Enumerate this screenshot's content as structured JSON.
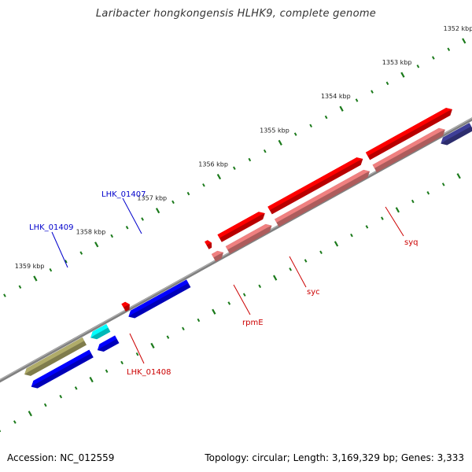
{
  "header": {
    "title": "Laribacter hongkongensis HLHK9, complete genome"
  },
  "footer": {
    "accession": "Accession: NC_012559",
    "summary": "Topology: circular; Length: 3,169,329 bp; Genes: 3,333"
  },
  "colors": {
    "tick": "#1b7a1b",
    "backbone": "#808080",
    "forward_cds": "#ff0000",
    "forward_rna": "#f08080",
    "reverse_cds": "#0000ff",
    "reverse_other": "#b0ac6a",
    "reverse_cyan": "#00ffff",
    "reverse_dark": "#3e3e98",
    "label_forward": "#cc0000",
    "label_reverse": "#0000cc"
  },
  "ruler": {
    "labels": [
      "1352 kbp",
      "1353 kbp",
      "1354 kbp",
      "1355 kbp",
      "1356 kbp",
      "1357 kbp",
      "1358 kbp",
      "1359 kbp"
    ]
  },
  "features": [
    {
      "id": "f-top-right",
      "track": "outer-forward",
      "start": 1352.62,
      "end": 1354.0,
      "color": "forward_cds"
    },
    {
      "id": "syc",
      "track": "outer-forward",
      "start": 1354.08,
      "end": 1355.6,
      "color": "forward_cds"
    },
    {
      "id": "f-mid",
      "track": "outer-forward",
      "start": 1355.68,
      "end": 1356.42,
      "color": "forward_cds"
    },
    {
      "id": "rpmE",
      "track": "outer-forward",
      "start": 1356.55,
      "end": 1356.63,
      "color": "forward_cds"
    },
    {
      "id": "rna-top-right",
      "track": "inner-forward",
      "start": 1352.85,
      "end": 1354.0,
      "color": "forward_rna"
    },
    {
      "id": "syq",
      "track": "inner-forward",
      "start": 1354.08,
      "end": 1355.6,
      "color": "forward_rna"
    },
    {
      "id": "rna-mid",
      "track": "inner-forward",
      "start": 1355.68,
      "end": 1356.4,
      "color": "forward_rna"
    },
    {
      "id": "rna-small",
      "track": "inner-forward",
      "start": 1356.47,
      "end": 1356.63,
      "color": "forward_rna"
    },
    {
      "id": "LHK_01408",
      "track": "inner-forward",
      "start": 1358.0,
      "end": 1358.1,
      "color": "forward_cds"
    },
    {
      "id": "r-dark",
      "track": "inner-reverse",
      "start": 1352.5,
      "end": 1353.0,
      "color": "reverse_dark"
    },
    {
      "id": "LHK_01407",
      "track": "inner-reverse",
      "start": 1357.12,
      "end": 1358.1,
      "color": "reverse_cds"
    },
    {
      "id": "LHK_01409",
      "track": "inner-reverse",
      "start": 1358.43,
      "end": 1358.72,
      "color": "reverse_cyan"
    },
    {
      "id": "r-olive",
      "track": "inner-reverse",
      "start": 1358.82,
      "end": 1359.8,
      "color": "reverse_other"
    },
    {
      "id": "r-blue-small",
      "track": "outer-reverse",
      "start": 1358.4,
      "end": 1358.72,
      "color": "reverse_cds"
    },
    {
      "id": "r-blue-left",
      "track": "outer-reverse",
      "start": 1358.82,
      "end": 1359.8,
      "color": "reverse_cds"
    }
  ],
  "labels": [
    {
      "text": "syq",
      "color": "label_forward"
    },
    {
      "text": "syc",
      "color": "label_forward"
    },
    {
      "text": "rpmE",
      "color": "label_forward"
    },
    {
      "text": "LHK_01408",
      "color": "label_forward"
    },
    {
      "text": "LHK_01407",
      "color": "label_reverse"
    },
    {
      "text": "LHK_01409",
      "color": "label_reverse"
    }
  ]
}
